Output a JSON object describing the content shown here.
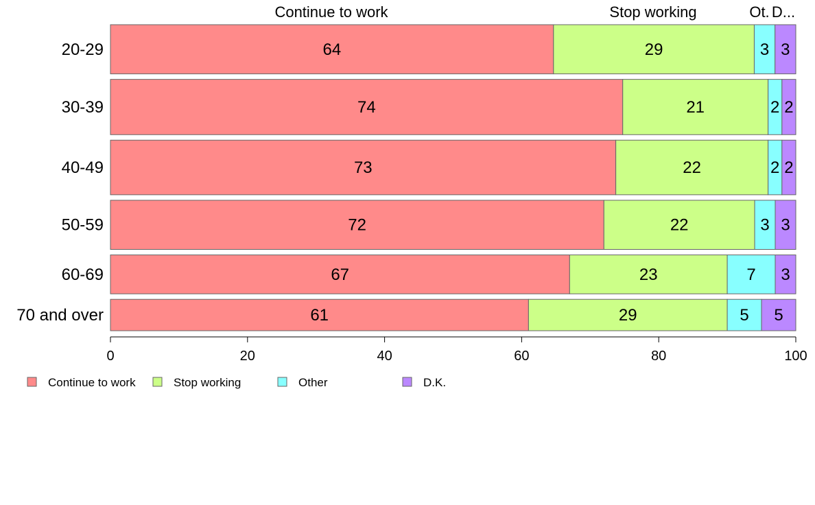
{
  "chart_data": {
    "type": "bar",
    "orientation": "horizontal",
    "stacked": true,
    "title": "",
    "xlabel": "",
    "ylabel": "",
    "xlim": [
      0,
      100
    ],
    "x_ticks": [
      0,
      20,
      40,
      60,
      80,
      100
    ],
    "x_tick_labels": [
      "0",
      "20",
      "40",
      "60",
      "80",
      "100"
    ],
    "grid": false,
    "legend_position": "bottom-left",
    "categories": [
      "20-29",
      "30-39",
      "40-49",
      "50-59",
      "60-69",
      "70 and over"
    ],
    "series": [
      {
        "name": "Continue to work",
        "color": "#ff8a8a",
        "values": [
          64,
          74,
          73,
          72,
          67,
          61
        ]
      },
      {
        "name": "Stop working",
        "color": "#ccff88",
        "values": [
          29,
          21,
          22,
          22,
          23,
          29
        ]
      },
      {
        "name": "Other",
        "color": "#88ffff",
        "values": [
          3,
          2,
          2,
          3,
          7,
          5
        ]
      },
      {
        "name": "D.K.",
        "color": "#bb88ff",
        "values": [
          3,
          2,
          2,
          3,
          3,
          5
        ]
      }
    ],
    "top_labels": [
      "Continue to work",
      "Stop working",
      "Ot.",
      "D..."
    ]
  }
}
